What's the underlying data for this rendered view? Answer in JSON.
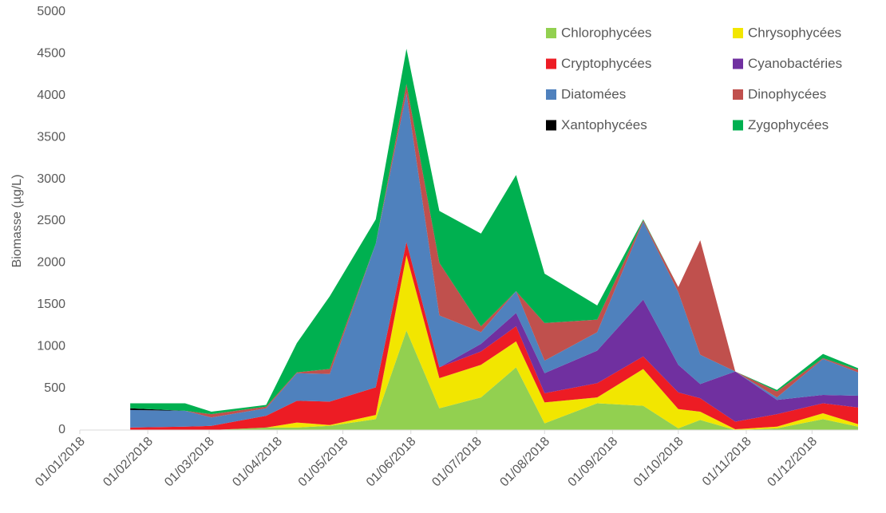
{
  "chart_data": {
    "type": "stacked_area",
    "y_label": "Biomasse (µg/L)",
    "x": [
      "2018-01-24",
      "2018-02-18",
      "2018-03-02",
      "2018-03-27",
      "2018-04-10",
      "2018-04-25",
      "2018-05-16",
      "2018-05-30",
      "2018-06-14",
      "2018-07-03",
      "2018-07-19",
      "2018-08-01",
      "2018-08-25",
      "2018-09-15",
      "2018-10-01",
      "2018-10-11",
      "2018-10-27",
      "2018-11-15",
      "2018-12-06",
      "2018-12-22"
    ],
    "series": [
      {
        "name": "Chlorophycées",
        "color": "#92d050",
        "values": [
          0,
          0,
          0,
          30,
          30,
          50,
          130,
          1190,
          260,
          390,
          750,
          80,
          320,
          290,
          20,
          120,
          0,
          20,
          130,
          40
        ]
      },
      {
        "name": "Chrysophycées",
        "color": "#f2e600",
        "values": [
          0,
          0,
          0,
          0,
          60,
          10,
          50,
          900,
          360,
          390,
          310,
          250,
          70,
          440,
          230,
          100,
          10,
          20,
          70,
          30
        ]
      },
      {
        "name": "Cryptophycées",
        "color": "#ed1c24",
        "values": [
          30,
          40,
          50,
          140,
          260,
          280,
          330,
          160,
          130,
          160,
          180,
          110,
          170,
          150,
          200,
          160,
          90,
          150,
          120,
          200
        ]
      },
      {
        "name": "Cyanobactéries",
        "color": "#7030a0",
        "values": [
          0,
          0,
          0,
          0,
          0,
          0,
          0,
          0,
          0,
          90,
          160,
          240,
          390,
          680,
          330,
          170,
          600,
          170,
          100,
          140
        ]
      },
      {
        "name": "Diatomées",
        "color": "#4f81bd",
        "values": [
          210,
          190,
          100,
          90,
          330,
          330,
          1720,
          1780,
          620,
          140,
          260,
          150,
          220,
          930,
          870,
          350,
          0,
          30,
          430,
          280
        ]
      },
      {
        "name": "Dinophycées",
        "color": "#c0504d",
        "values": [
          0,
          0,
          40,
          20,
          10,
          60,
          0,
          110,
          630,
          70,
          0,
          450,
          150,
          20,
          60,
          1370,
          0,
          70,
          10,
          30
        ]
      },
      {
        "name": "Xantophycées",
        "color": "#000000",
        "values": [
          20,
          0,
          0,
          0,
          0,
          0,
          0,
          0,
          0,
          0,
          0,
          0,
          0,
          0,
          0,
          0,
          0,
          0,
          0,
          0
        ]
      },
      {
        "name": "Zygophycées",
        "color": "#00b050",
        "values": [
          60,
          90,
          30,
          20,
          350,
          870,
          290,
          420,
          620,
          1110,
          1390,
          590,
          170,
          10,
          0,
          0,
          0,
          20,
          50,
          20
        ]
      }
    ],
    "xlim": [
      "2018-01-01",
      "2018-12-22"
    ],
    "xticks": [
      {
        "value": "2018-01-01",
        "label": "01/01/2018"
      },
      {
        "value": "2018-02-01",
        "label": "01/02/2018"
      },
      {
        "value": "2018-03-01",
        "label": "01/03/2018"
      },
      {
        "value": "2018-04-01",
        "label": "01/04/2018"
      },
      {
        "value": "2018-05-01",
        "label": "01/05/2018"
      },
      {
        "value": "2018-06-01",
        "label": "01/06/2018"
      },
      {
        "value": "2018-07-01",
        "label": "01/07/2018"
      },
      {
        "value": "2018-08-01",
        "label": "01/08/2018"
      },
      {
        "value": "2018-09-01",
        "label": "01/09/2018"
      },
      {
        "value": "2018-10-01",
        "label": "01/10/2018"
      },
      {
        "value": "2018-11-01",
        "label": "01/11/2018"
      },
      {
        "value": "2018-12-01",
        "label": "01/12/2018"
      }
    ],
    "ylim": [
      0,
      5000
    ],
    "yticks": [
      0,
      500,
      1000,
      1500,
      2000,
      2500,
      3000,
      3500,
      4000,
      4500,
      5000
    ],
    "grid": false,
    "legend_position": "top-right"
  }
}
